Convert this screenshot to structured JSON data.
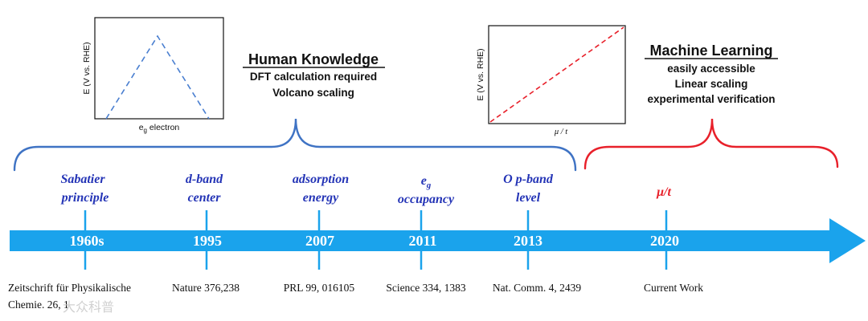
{
  "colors": {
    "timeline_arrow": "#1aa3ec",
    "bracket_blue": "#3f73c4",
    "bracket_red": "#e8202a",
    "concept_blue": "#2434b6",
    "concept_red": "#e8202a",
    "tick": "#1aa3ec"
  },
  "human": {
    "title": "Human Knowledge",
    "lines": [
      "DFT calculation required",
      "Volcano scaling"
    ],
    "plot": {
      "ylabel": "E (V vs. RHE)",
      "xlabel_main": "e",
      "xlabel_sub": "g",
      "xlabel_rest": " electron",
      "line_style": "dashed",
      "shape": "volcano"
    }
  },
  "ml": {
    "title": "Machine Learning",
    "lines": [
      "easily accessible",
      "Linear scaling",
      "experimental verification"
    ],
    "plot": {
      "ylabel": "E (V vs. RHE)",
      "xlabel": "μ / t",
      "line_style": "dashed",
      "shape": "linear"
    }
  },
  "milestones": [
    {
      "concept_lines": [
        "Sabatier",
        "principle"
      ],
      "year": "1960s",
      "ref_lines": [
        "Zeitschrift für Physikalische",
        "Chemie. 26, 1"
      ],
      "group": "human"
    },
    {
      "concept_lines": [
        "d-band",
        "center"
      ],
      "year": "1995",
      "ref_lines": [
        "Nature 376,238"
      ],
      "group": "human"
    },
    {
      "concept_lines": [
        "adsorption",
        "energy"
      ],
      "year": "2007",
      "ref_lines": [
        "PRL 99, 016105"
      ],
      "group": "human"
    },
    {
      "concept_main": "e",
      "concept_sub": "g",
      "concept_line2": "occupancy",
      "year": "2011",
      "ref_lines": [
        "Science 334, 1383"
      ],
      "group": "human"
    },
    {
      "concept_lines": [
        "O p-band",
        "level"
      ],
      "year": "2013",
      "ref_lines": [
        "Nat. Comm. 4, 2439"
      ],
      "group": "human"
    },
    {
      "concept_lines": [
        "μ/t"
      ],
      "year": "2020",
      "ref_lines": [
        "Current Work"
      ],
      "group": "ml"
    }
  ],
  "watermark": "大众科普"
}
